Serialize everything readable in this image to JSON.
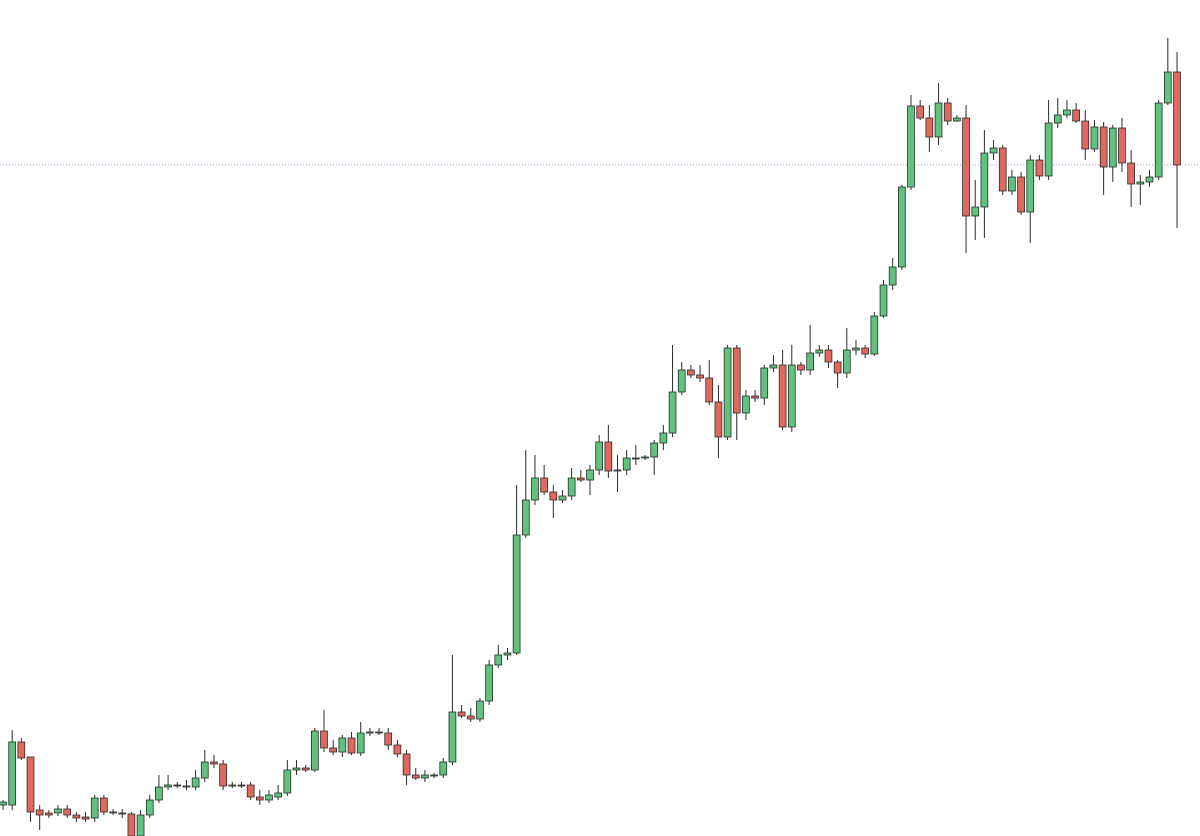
{
  "chart_data": {
    "type": "candlestick",
    "up_color": "#5fc27e",
    "down_color": "#e0695f",
    "edge_color": "#2b2b2b",
    "price_line_color": "#98a6d6",
    "ylim": [
      0,
      836
    ],
    "price_line": 671,
    "open": [
      31,
      31,
      94,
      79,
      26,
      23,
      23,
      27,
      21,
      19,
      18,
      38,
      24,
      23,
      22,
      0,
      21,
      36,
      49,
      51,
      50,
      49,
      58,
      74,
      72,
      51,
      51,
      51,
      39,
      36,
      39,
      43,
      66,
      68,
      66,
      105,
      88,
      84,
      98,
      83,
      103,
      104,
      103,
      91,
      82,
      61,
      58,
      61,
      61,
      74,
      124,
      120,
      117,
      135,
      171,
      181,
      183,
      301,
      336,
      358,
      344,
      336,
      340,
      358,
      356,
      366,
      394,
      365,
      366,
      378,
      378,
      379,
      393,
      403,
      444,
      466,
      461,
      458,
      434,
      399,
      488,
      423,
      440,
      438,
      468,
      471,
      409,
      471,
      466,
      483,
      486,
      474,
      463,
      486,
      488,
      482,
      520,
      551,
      569,
      649,
      730,
      718,
      699,
      733,
      715,
      718,
      620,
      629,
      683,
      688,
      645,
      659,
      624,
      676,
      660,
      713,
      721,
      726,
      715,
      687,
      709,
      669,
      708,
      673,
      652,
      654,
      659,
      733,
      764
    ],
    "high": [
      36,
      106,
      98,
      79,
      31,
      26,
      31,
      31,
      24,
      24,
      41,
      41,
      27,
      27,
      24,
      26,
      41,
      61,
      61,
      54,
      56,
      66,
      86,
      81,
      76,
      54,
      54,
      54,
      46,
      46,
      51,
      76,
      76,
      71,
      108,
      126,
      96,
      101,
      104,
      114,
      108,
      108,
      108,
      96,
      86,
      68,
      66,
      63,
      78,
      181,
      131,
      128,
      138,
      176,
      191,
      188,
      351,
      386,
      381,
      371,
      351,
      346,
      368,
      366,
      371,
      401,
      411,
      381,
      386,
      391,
      381,
      396,
      411,
      491,
      474,
      471,
      471,
      476,
      451,
      491,
      491,
      446,
      446,
      471,
      481,
      486,
      491,
      474,
      511,
      491,
      491,
      476,
      508,
      496,
      491,
      524,
      556,
      578,
      651,
      741,
      736,
      731,
      753,
      738,
      721,
      731,
      656,
      706,
      696,
      691,
      666,
      664,
      681,
      681,
      736,
      738,
      736,
      733,
      726,
      716,
      714,
      711,
      718,
      686,
      661,
      666,
      736,
      798,
      784
    ],
    "low": [
      26,
      26,
      76,
      14,
      6,
      18,
      20,
      18,
      14,
      14,
      14,
      21,
      21,
      18,
      0,
      0,
      18,
      33,
      46,
      48,
      46,
      46,
      54,
      68,
      46,
      48,
      48,
      36,
      31,
      33,
      36,
      40,
      61,
      64,
      64,
      84,
      81,
      79,
      81,
      80,
      100,
      101,
      86,
      79,
      51,
      56,
      54,
      58,
      58,
      71,
      118,
      114,
      114,
      131,
      168,
      176,
      181,
      298,
      331,
      341,
      318,
      333,
      336,
      354,
      341,
      361,
      358,
      344,
      361,
      371,
      376,
      361,
      386,
      399,
      441,
      458,
      454,
      431,
      378,
      396,
      396,
      416,
      434,
      431,
      464,
      406,
      404,
      461,
      461,
      479,
      468,
      448,
      458,
      481,
      478,
      480,
      518,
      546,
      566,
      646,
      716,
      684,
      691,
      711,
      714,
      583,
      596,
      598,
      676,
      641,
      641,
      621,
      593,
      656,
      656,
      708,
      718,
      713,
      676,
      684,
      641,
      654,
      664,
      629,
      631,
      649,
      656,
      731,
      608
    ],
    "close": [
      34,
      94,
      78,
      24,
      21,
      21,
      27,
      21,
      18,
      17,
      38,
      24,
      23,
      22,
      0,
      21,
      36,
      49,
      51,
      50,
      49,
      58,
      74,
      72,
      50,
      51,
      51,
      39,
      36,
      41,
      43,
      66,
      68,
      66,
      105,
      88,
      84,
      98,
      83,
      103,
      104,
      103,
      91,
      82,
      61,
      58,
      61,
      61,
      74,
      124,
      120,
      117,
      135,
      171,
      181,
      183,
      301,
      336,
      358,
      344,
      336,
      340,
      358,
      356,
      366,
      394,
      365,
      366,
      378,
      378,
      379,
      393,
      403,
      444,
      466,
      461,
      458,
      434,
      399,
      488,
      423,
      440,
      438,
      468,
      471,
      409,
      471,
      466,
      483,
      486,
      474,
      463,
      486,
      488,
      482,
      520,
      551,
      569,
      649,
      730,
      718,
      699,
      733,
      715,
      718,
      620,
      629,
      683,
      688,
      645,
      659,
      624,
      676,
      660,
      713,
      721,
      726,
      715,
      687,
      709,
      669,
      708,
      673,
      652,
      654,
      659,
      733,
      764,
      671
    ]
  }
}
